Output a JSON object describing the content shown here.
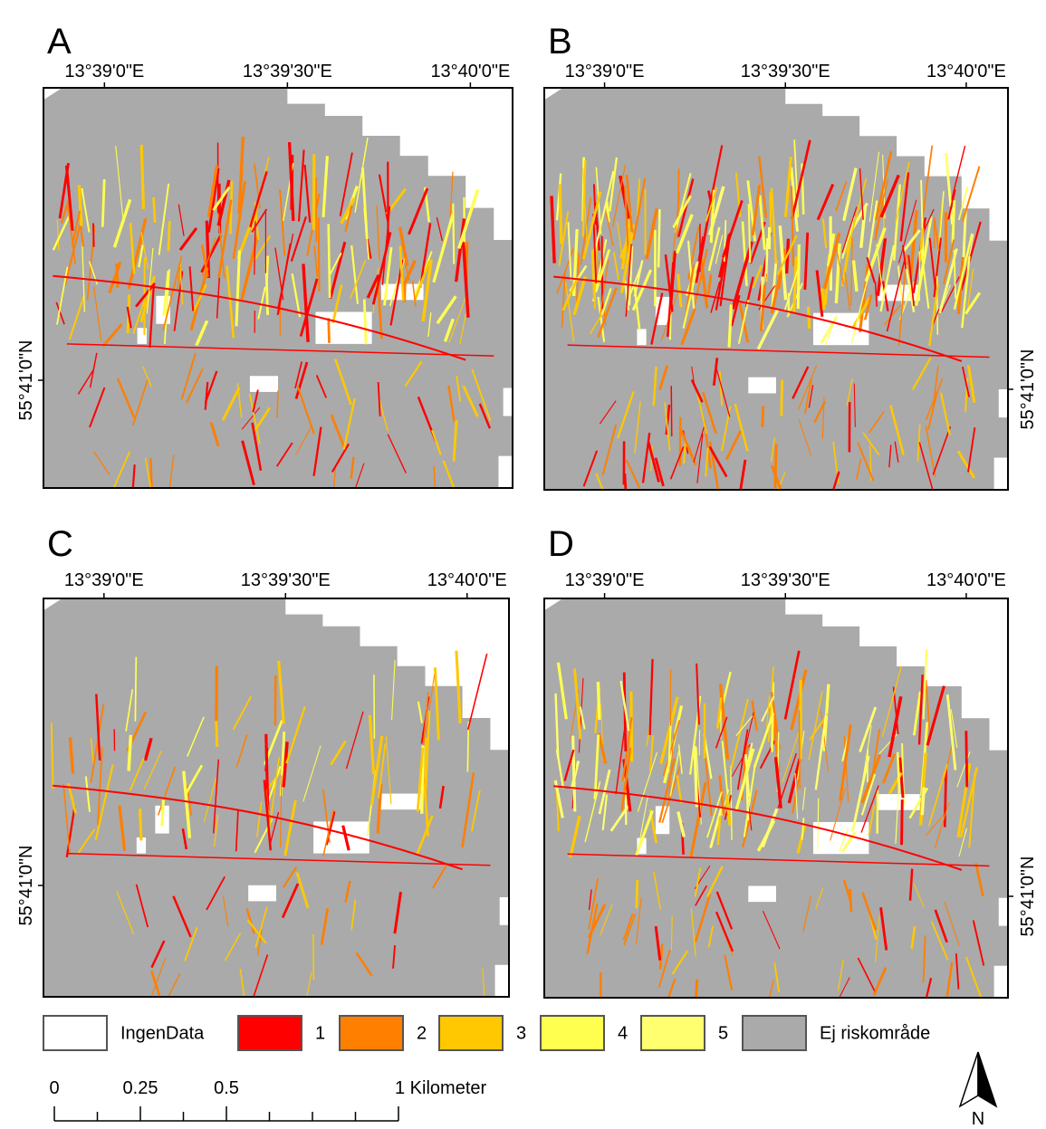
{
  "panels": [
    {
      "label": "A",
      "top_axis": [
        "13°39'0\"E",
        "13°39'30\"E",
        "13°40'0\"E"
      ],
      "side_axis": "55°41'0\"N"
    },
    {
      "label": "B",
      "top_axis": [
        "13°39'0\"E",
        "13°39'30\"E",
        "13°40'0\"E"
      ],
      "side_axis": "55°41'0\"N"
    },
    {
      "label": "C",
      "top_axis": [
        "13°39'0\"E",
        "13°39'30\"E",
        "13°40'0\"E"
      ],
      "side_axis": "55°41'0\"N"
    },
    {
      "label": "D",
      "top_axis": [
        "13°39'0\"E",
        "13°39'30\"E",
        "13°40'0\"E"
      ],
      "side_axis": "55°41'0\"N"
    }
  ],
  "legend": {
    "items": [
      {
        "label": "IngenData",
        "color": "#ffffff"
      },
      {
        "label": "1",
        "color": "#ff0000"
      },
      {
        "label": "2",
        "color": "#ff7f00"
      },
      {
        "label": "3",
        "color": "#ffc800"
      },
      {
        "label": "4",
        "color": "#ffff50"
      },
      {
        "label": "5",
        "color": "#ffff70"
      },
      {
        "label": "Ej riskområde",
        "color": "#aaaaaa"
      }
    ]
  },
  "scale_bar": {
    "labels": [
      "0",
      "0.25",
      "0.5",
      "1 Kilometer"
    ]
  },
  "north_arrow": "N"
}
